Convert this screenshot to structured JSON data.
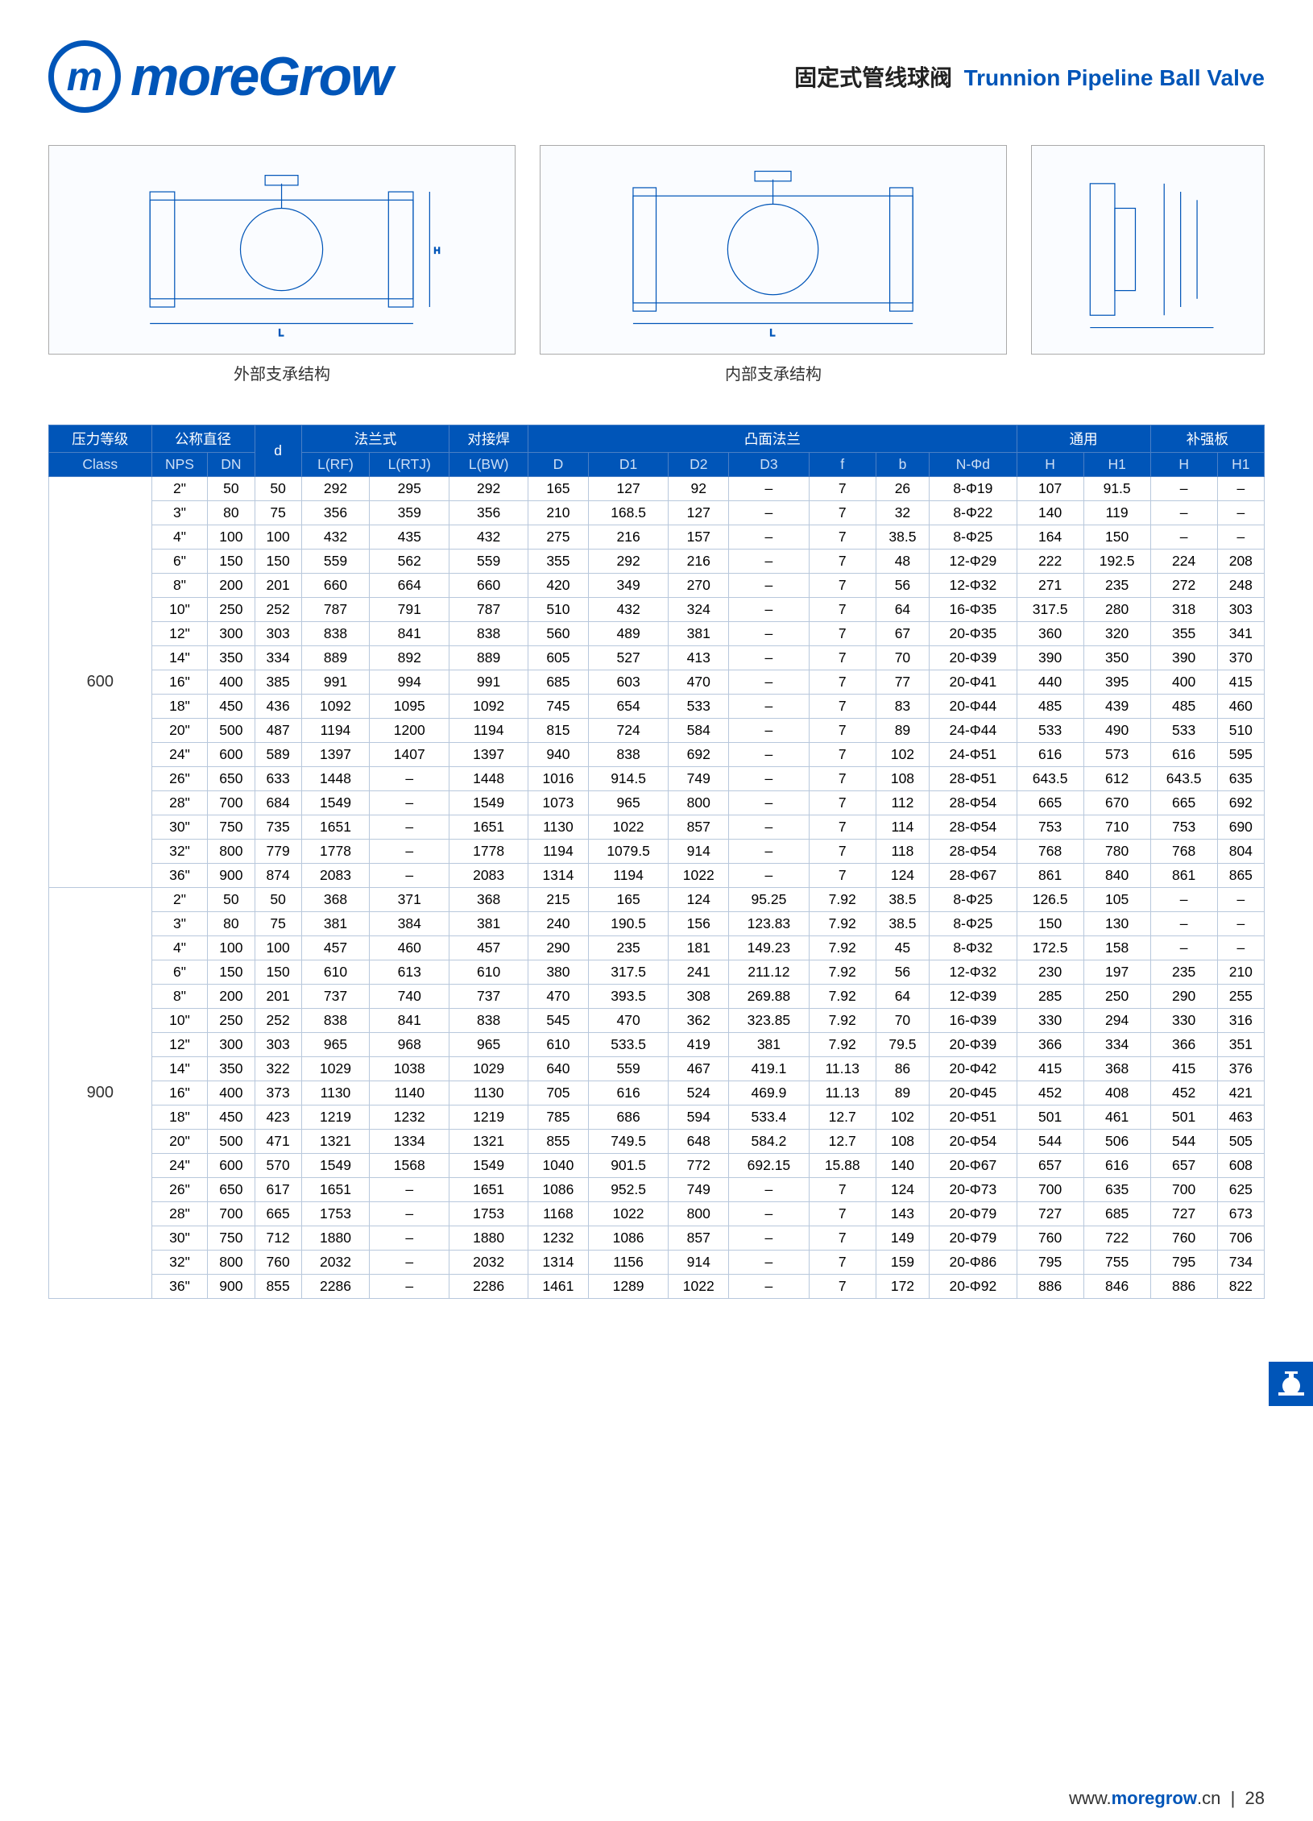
{
  "logo_text": "moreGrow",
  "title_cn": "固定式管线球阀",
  "title_en": "Trunnion Pipeline Ball Valve",
  "diagram1_caption": "外部支承结构",
  "diagram2_caption": "内部支承结构",
  "headers_group": {
    "pressure": "压力等级",
    "nominal": "公称直径",
    "d": "d",
    "flange": "法兰式",
    "buttweld": "对接焊",
    "convex": "凸面法兰",
    "common": "通用",
    "reinforce": "补强板"
  },
  "headers_sub": [
    "Class",
    "NPS",
    "DN",
    "",
    "L(RF)",
    "L(RTJ)",
    "L(BW)",
    "D",
    "D1",
    "D2",
    "D3",
    "f",
    "b",
    "N-Φd",
    "H",
    "H1",
    "H",
    "H1"
  ],
  "classes": [
    {
      "class": "600",
      "rows": [
        [
          "2\"",
          "50",
          "50",
          "292",
          "295",
          "292",
          "165",
          "127",
          "92",
          "–",
          "7",
          "26",
          "8-Φ19",
          "107",
          "91.5",
          "–",
          "–"
        ],
        [
          "3\"",
          "80",
          "75",
          "356",
          "359",
          "356",
          "210",
          "168.5",
          "127",
          "–",
          "7",
          "32",
          "8-Φ22",
          "140",
          "119",
          "–",
          "–"
        ],
        [
          "4\"",
          "100",
          "100",
          "432",
          "435",
          "432",
          "275",
          "216",
          "157",
          "–",
          "7",
          "38.5",
          "8-Φ25",
          "164",
          "150",
          "–",
          "–"
        ],
        [
          "6\"",
          "150",
          "150",
          "559",
          "562",
          "559",
          "355",
          "292",
          "216",
          "–",
          "7",
          "48",
          "12-Φ29",
          "222",
          "192.5",
          "224",
          "208"
        ],
        [
          "8\"",
          "200",
          "201",
          "660",
          "664",
          "660",
          "420",
          "349",
          "270",
          "–",
          "7",
          "56",
          "12-Φ32",
          "271",
          "235",
          "272",
          "248"
        ],
        [
          "10\"",
          "250",
          "252",
          "787",
          "791",
          "787",
          "510",
          "432",
          "324",
          "–",
          "7",
          "64",
          "16-Φ35",
          "317.5",
          "280",
          "318",
          "303"
        ],
        [
          "12\"",
          "300",
          "303",
          "838",
          "841",
          "838",
          "560",
          "489",
          "381",
          "–",
          "7",
          "67",
          "20-Φ35",
          "360",
          "320",
          "355",
          "341"
        ],
        [
          "14\"",
          "350",
          "334",
          "889",
          "892",
          "889",
          "605",
          "527",
          "413",
          "–",
          "7",
          "70",
          "20-Φ39",
          "390",
          "350",
          "390",
          "370"
        ],
        [
          "16\"",
          "400",
          "385",
          "991",
          "994",
          "991",
          "685",
          "603",
          "470",
          "–",
          "7",
          "77",
          "20-Φ41",
          "440",
          "395",
          "400",
          "415"
        ],
        [
          "18\"",
          "450",
          "436",
          "1092",
          "1095",
          "1092",
          "745",
          "654",
          "533",
          "–",
          "7",
          "83",
          "20-Φ44",
          "485",
          "439",
          "485",
          "460"
        ],
        [
          "20\"",
          "500",
          "487",
          "1194",
          "1200",
          "1194",
          "815",
          "724",
          "584",
          "–",
          "7",
          "89",
          "24-Φ44",
          "533",
          "490",
          "533",
          "510"
        ],
        [
          "24\"",
          "600",
          "589",
          "1397",
          "1407",
          "1397",
          "940",
          "838",
          "692",
          "–",
          "7",
          "102",
          "24-Φ51",
          "616",
          "573",
          "616",
          "595"
        ],
        [
          "26\"",
          "650",
          "633",
          "1448",
          "–",
          "1448",
          "1016",
          "914.5",
          "749",
          "–",
          "7",
          "108",
          "28-Φ51",
          "643.5",
          "612",
          "643.5",
          "635"
        ],
        [
          "28\"",
          "700",
          "684",
          "1549",
          "–",
          "1549",
          "1073",
          "965",
          "800",
          "–",
          "7",
          "112",
          "28-Φ54",
          "665",
          "670",
          "665",
          "692"
        ],
        [
          "30\"",
          "750",
          "735",
          "1651",
          "–",
          "1651",
          "1130",
          "1022",
          "857",
          "–",
          "7",
          "114",
          "28-Φ54",
          "753",
          "710",
          "753",
          "690"
        ],
        [
          "32\"",
          "800",
          "779",
          "1778",
          "–",
          "1778",
          "1194",
          "1079.5",
          "914",
          "–",
          "7",
          "118",
          "28-Φ54",
          "768",
          "780",
          "768",
          "804"
        ],
        [
          "36\"",
          "900",
          "874",
          "2083",
          "–",
          "2083",
          "1314",
          "1194",
          "1022",
          "–",
          "7",
          "124",
          "28-Φ67",
          "861",
          "840",
          "861",
          "865"
        ]
      ]
    },
    {
      "class": "900",
      "rows": [
        [
          "2\"",
          "50",
          "50",
          "368",
          "371",
          "368",
          "215",
          "165",
          "124",
          "95.25",
          "7.92",
          "38.5",
          "8-Φ25",
          "126.5",
          "105",
          "–",
          "–"
        ],
        [
          "3\"",
          "80",
          "75",
          "381",
          "384",
          "381",
          "240",
          "190.5",
          "156",
          "123.83",
          "7.92",
          "38.5",
          "8-Φ25",
          "150",
          "130",
          "–",
          "–"
        ],
        [
          "4\"",
          "100",
          "100",
          "457",
          "460",
          "457",
          "290",
          "235",
          "181",
          "149.23",
          "7.92",
          "45",
          "8-Φ32",
          "172.5",
          "158",
          "–",
          "–"
        ],
        [
          "6\"",
          "150",
          "150",
          "610",
          "613",
          "610",
          "380",
          "317.5",
          "241",
          "211.12",
          "7.92",
          "56",
          "12-Φ32",
          "230",
          "197",
          "235",
          "210"
        ],
        [
          "8\"",
          "200",
          "201",
          "737",
          "740",
          "737",
          "470",
          "393.5",
          "308",
          "269.88",
          "7.92",
          "64",
          "12-Φ39",
          "285",
          "250",
          "290",
          "255"
        ],
        [
          "10\"",
          "250",
          "252",
          "838",
          "841",
          "838",
          "545",
          "470",
          "362",
          "323.85",
          "7.92",
          "70",
          "16-Φ39",
          "330",
          "294",
          "330",
          "316"
        ],
        [
          "12\"",
          "300",
          "303",
          "965",
          "968",
          "965",
          "610",
          "533.5",
          "419",
          "381",
          "7.92",
          "79.5",
          "20-Φ39",
          "366",
          "334",
          "366",
          "351"
        ],
        [
          "14\"",
          "350",
          "322",
          "1029",
          "1038",
          "1029",
          "640",
          "559",
          "467",
          "419.1",
          "11.13",
          "86",
          "20-Φ42",
          "415",
          "368",
          "415",
          "376"
        ],
        [
          "16\"",
          "400",
          "373",
          "1130",
          "1140",
          "1130",
          "705",
          "616",
          "524",
          "469.9",
          "11.13",
          "89",
          "20-Φ45",
          "452",
          "408",
          "452",
          "421"
        ],
        [
          "18\"",
          "450",
          "423",
          "1219",
          "1232",
          "1219",
          "785",
          "686",
          "594",
          "533.4",
          "12.7",
          "102",
          "20-Φ51",
          "501",
          "461",
          "501",
          "463"
        ],
        [
          "20\"",
          "500",
          "471",
          "1321",
          "1334",
          "1321",
          "855",
          "749.5",
          "648",
          "584.2",
          "12.7",
          "108",
          "20-Φ54",
          "544",
          "506",
          "544",
          "505"
        ],
        [
          "24\"",
          "600",
          "570",
          "1549",
          "1568",
          "1549",
          "1040",
          "901.5",
          "772",
          "692.15",
          "15.88",
          "140",
          "20-Φ67",
          "657",
          "616",
          "657",
          "608"
        ],
        [
          "26\"",
          "650",
          "617",
          "1651",
          "–",
          "1651",
          "1086",
          "952.5",
          "749",
          "–",
          "7",
          "124",
          "20-Φ73",
          "700",
          "635",
          "700",
          "625"
        ],
        [
          "28\"",
          "700",
          "665",
          "1753",
          "–",
          "1753",
          "1168",
          "1022",
          "800",
          "–",
          "7",
          "143",
          "20-Φ79",
          "727",
          "685",
          "727",
          "673"
        ],
        [
          "30\"",
          "750",
          "712",
          "1880",
          "–",
          "1880",
          "1232",
          "1086",
          "857",
          "–",
          "7",
          "149",
          "20-Φ79",
          "760",
          "722",
          "760",
          "706"
        ],
        [
          "32\"",
          "800",
          "760",
          "2032",
          "–",
          "2032",
          "1314",
          "1156",
          "914",
          "–",
          "7",
          "159",
          "20-Φ86",
          "795",
          "755",
          "795",
          "734"
        ],
        [
          "36\"",
          "900",
          "855",
          "2286",
          "–",
          "2286",
          "1461",
          "1289",
          "1022",
          "–",
          "7",
          "172",
          "20-Φ92",
          "886",
          "846",
          "886",
          "822"
        ]
      ]
    }
  ],
  "footer_url_prefix": "www.",
  "footer_url_brand": "moregrow",
  "footer_url_suffix": ".cn",
  "footer_page": "28"
}
